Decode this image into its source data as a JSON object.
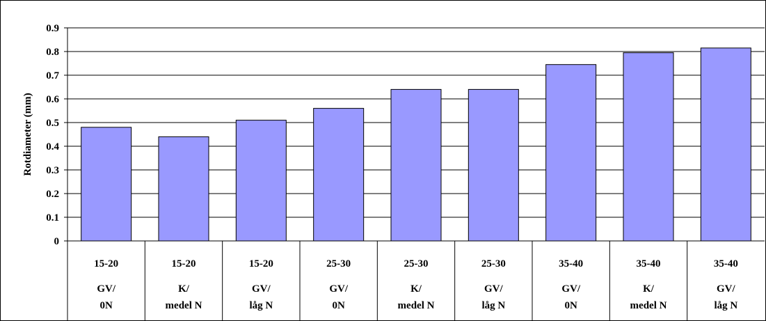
{
  "chart_data": {
    "type": "bar",
    "title": "",
    "ylabel": "Rotdiameter (mm)",
    "xlabel": "",
    "ylim": [
      0,
      0.9
    ],
    "yticks": [
      "0",
      "0.1",
      "0.2",
      "0.3",
      "0.4",
      "0.5",
      "0.6",
      "0.7",
      "0.8",
      "0.9"
    ],
    "grid": true,
    "legend": "none",
    "bar_color": "#9999ff",
    "categories": [
      {
        "range": "15-20",
        "treatment_line1": "GV/",
        "treatment_line2": "0N"
      },
      {
        "range": "15-20",
        "treatment_line1": "K/",
        "treatment_line2": "medel N"
      },
      {
        "range": "15-20",
        "treatment_line1": "GV/",
        "treatment_line2": "låg N"
      },
      {
        "range": "25-30",
        "treatment_line1": "GV/",
        "treatment_line2": "0N"
      },
      {
        "range": "25-30",
        "treatment_line1": "K/",
        "treatment_line2": "medel N"
      },
      {
        "range": "25-30",
        "treatment_line1": "GV/",
        "treatment_line2": "låg N"
      },
      {
        "range": "35-40",
        "treatment_line1": "GV/",
        "treatment_line2": "0N"
      },
      {
        "range": "35-40",
        "treatment_line1": "K/",
        "treatment_line2": "medel N"
      },
      {
        "range": "35-40",
        "treatment_line1": "GV/",
        "treatment_line2": "låg N"
      }
    ],
    "values": [
      0.48,
      0.44,
      0.51,
      0.56,
      0.64,
      0.64,
      0.745,
      0.795,
      0.815
    ]
  }
}
